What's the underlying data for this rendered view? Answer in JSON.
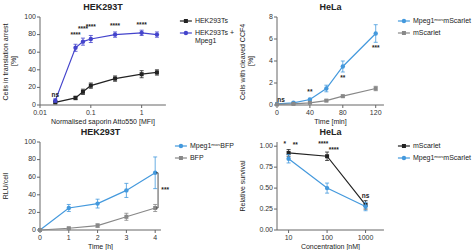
{
  "chart_data": [
    {
      "type": "line",
      "title": "HEK293T",
      "x_label": "Normalised saporin Atto550 [MFI]",
      "y_label": "Cells in translation arrest [%]",
      "log": "x",
      "x": [
        0.02,
        0.05,
        0.07,
        0.1,
        0.3,
        1.0,
        2.0
      ],
      "series": [
        {
          "name": "HEK293Ts",
          "color": "#222222",
          "marker": "square",
          "values": [
            3,
            8,
            15,
            22,
            30,
            35,
            37
          ],
          "errors": [
            1,
            2,
            3,
            3,
            3,
            4,
            3
          ]
        },
        {
          "name": "HEK293Ts +\nMpeg1",
          "color": "#4444cc",
          "marker": "circle",
          "values": [
            5,
            65,
            72,
            75,
            80,
            82,
            80
          ],
          "errors": [
            2,
            4,
            4,
            4,
            3,
            3,
            3
          ]
        }
      ],
      "xlim": [
        0.01,
        3
      ],
      "ylim": [
        0,
        100
      ],
      "xticks": [
        0.01,
        0.1,
        1
      ],
      "yticks": [
        0,
        20,
        40,
        60,
        80,
        100
      ],
      "legend": "right",
      "annotations": [
        {
          "text": "ns",
          "x": 0.02,
          "y": 9
        },
        {
          "text": "****",
          "x": 0.05,
          "y": 77
        },
        {
          "text": "****",
          "x": 0.07,
          "y": 84
        },
        {
          "text": "****",
          "x": 0.1,
          "y": 86
        },
        {
          "text": "****",
          "x": 0.3,
          "y": 87
        },
        {
          "text": "****",
          "x": 1.0,
          "y": 88
        }
      ]
    },
    {
      "type": "line",
      "title": "HeLa",
      "x_label": "Time [min]",
      "y_label": "Cells with cleaved CCF4 [%]",
      "x": [
        0,
        20,
        40,
        60,
        80,
        120
      ],
      "series": [
        {
          "name": "Mpeg1ᵐᵒˢmScarlet",
          "color": "#4499dd",
          "marker": "circle",
          "values": [
            0.1,
            0.2,
            0.5,
            1.5,
            3.5,
            6.5
          ],
          "errors": [
            0.05,
            0.05,
            0.1,
            0.3,
            0.5,
            0.8
          ]
        },
        {
          "name": "mScarlet",
          "color": "#888888",
          "marker": "square",
          "values": [
            0.05,
            0.1,
            0.2,
            0.4,
            0.8,
            1.5
          ],
          "errors": [
            0.02,
            0.05,
            0.05,
            0.1,
            0.1,
            0.2
          ]
        }
      ],
      "xlim": [
        0,
        130
      ],
      "ylim": [
        0,
        8
      ],
      "xticks": [
        0,
        40,
        80,
        120
      ],
      "yticks": [
        0,
        2,
        4,
        6,
        8
      ],
      "legend": "right",
      "annotations": [
        {
          "text": "ns",
          "x": 5,
          "y": 0.25
        },
        {
          "text": "**",
          "x": 40,
          "y": 1.0
        },
        {
          "text": "**",
          "x": 80,
          "y": 2.2
        },
        {
          "text": "***",
          "x": 120,
          "y": 5.0
        }
      ]
    },
    {
      "type": "line",
      "title": "HEK293T",
      "x_label": "Time [h]",
      "y_label": "RLU/cell",
      "x": [
        0,
        1,
        2,
        3,
        4
      ],
      "series": [
        {
          "name": "Mpeg1ᵐᵒˢBFP",
          "color": "#4499dd",
          "marker": "circle",
          "values": [
            0,
            25,
            30,
            45,
            65
          ],
          "errors": [
            0,
            4,
            5,
            8,
            18
          ]
        },
        {
          "name": "BFP",
          "color": "#888888",
          "marker": "square",
          "values": [
            0,
            2,
            5,
            15,
            25
          ],
          "errors": [
            0,
            1,
            2,
            4,
            4
          ]
        }
      ],
      "xlim": [
        0,
        4.2
      ],
      "ylim": [
        0,
        100
      ],
      "xticks": [
        0,
        1,
        2,
        3,
        4
      ],
      "yticks": [
        0,
        20,
        40,
        60,
        80,
        100
      ],
      "legend": "right",
      "annotations": [
        {
          "text": "***",
          "x": 4.18,
          "y": 45,
          "bracket_x": 4.1,
          "bracket_y": [
            25,
            65
          ]
        }
      ]
    },
    {
      "type": "line",
      "title": "HeLa",
      "x_label": "Concentration [nM]",
      "y_label": "Relative survival",
      "log": "x",
      "x": [
        10,
        100,
        1000
      ],
      "series": [
        {
          "name": "mScarlet",
          "color": "#222222",
          "marker": "square",
          "values": [
            0.92,
            0.88,
            0.3
          ],
          "errors": [
            0.04,
            0.05,
            0.05
          ]
        },
        {
          "name": "Mpeg1ᵐᵒˢmScarlet",
          "color": "#4499dd",
          "marker": "circle",
          "values": [
            0.85,
            0.5,
            0.28
          ],
          "errors": [
            0.05,
            0.06,
            0.05
          ]
        }
      ],
      "xlim": [
        5,
        3000
      ],
      "ylim": [
        0.0,
        1.05
      ],
      "xticks": [
        10,
        100,
        1000
      ],
      "yticks": [
        {
          "value": 0.0,
          "label": "0.00"
        },
        0.25,
        {
          "value": 0.5,
          "label": "0.50"
        },
        0.75,
        {
          "value": 1.0,
          "label": "1.00"
        }
      ],
      "legend": "right",
      "annotations": [
        {
          "text": "*",
          "x": 8,
          "y": 1.0
        },
        {
          "text": "**",
          "x": 15,
          "y": 0.98
        },
        {
          "text": "****",
          "x": 80,
          "y": 1.0
        },
        {
          "text": "****",
          "x": 150,
          "y": 0.92
        },
        {
          "text": "ns",
          "x": 1000,
          "y": 0.38
        }
      ]
    }
  ]
}
